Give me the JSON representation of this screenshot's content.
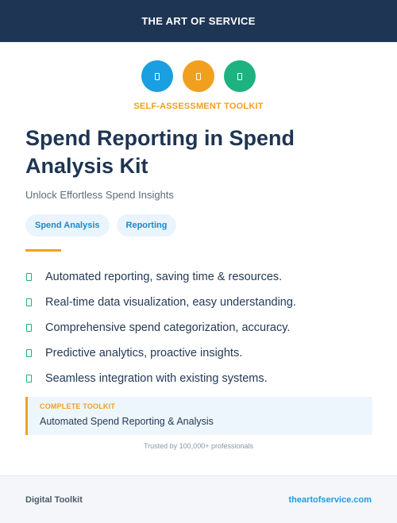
{
  "header": {
    "brand": "THE ART OF SERVICE"
  },
  "icons": [
    {
      "name": "document-icon",
      "color": "#1a9fe0"
    },
    {
      "name": "document-icon",
      "color": "#f0a01e"
    },
    {
      "name": "document-icon",
      "color": "#1db27f"
    }
  ],
  "kicker": "SELF-ASSESSMENT TOOLKIT",
  "title": "Spend Reporting in Spend Analysis Kit",
  "subtitle": "Unlock Effortless Spend Insights",
  "tags": [
    "Spend Analysis",
    "Reporting"
  ],
  "features": [
    "Automated reporting, saving time & resources.",
    "Real-time data visualization, easy understanding.",
    "Comprehensive spend categorization, accuracy.",
    "Predictive analytics, proactive insights.",
    "Seamless integration with existing systems."
  ],
  "callout": {
    "label": "COMPLETE TOOLKIT",
    "text": "Automated Spend Reporting & Analysis"
  },
  "trusted": "Trusted by 100,000+ professionals",
  "footer": {
    "left": "Digital Toolkit",
    "right": "theartofservice.com"
  },
  "colors": {
    "navy": "#1e3553",
    "accent_orange": "#f0a01e",
    "accent_blue": "#1a9fe0",
    "accent_green": "#1db27f"
  }
}
